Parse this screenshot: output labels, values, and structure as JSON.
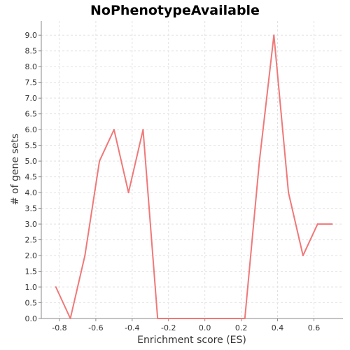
{
  "chart_data": {
    "type": "line",
    "title": "NoPhenotypeAvailable",
    "xlabel": "Enrichment score (ES)",
    "ylabel": "# of gene sets",
    "xlim": [
      -0.9,
      0.76
    ],
    "ylim": [
      0,
      9.45
    ],
    "xticks": [
      "-0.8",
      "-0.6",
      "-0.4",
      "-0.2",
      "0.0",
      "0.2",
      "0.4",
      "0.6"
    ],
    "xtick_values": [
      -0.8,
      -0.6,
      -0.4,
      -0.2,
      0.0,
      0.2,
      0.4,
      0.6
    ],
    "yticks": [
      "0.0",
      "0.5",
      "1.0",
      "1.5",
      "2.0",
      "2.5",
      "3.0",
      "3.5",
      "4.0",
      "4.5",
      "5.0",
      "5.5",
      "6.0",
      "6.5",
      "7.0",
      "7.5",
      "8.0",
      "8.5",
      "9.0"
    ],
    "ytick_values": [
      0,
      0.5,
      1,
      1.5,
      2,
      2.5,
      3,
      3.5,
      4,
      4.5,
      5,
      5.5,
      6,
      6.5,
      7,
      7.5,
      8,
      8.5,
      9
    ],
    "grid": true,
    "series": [
      {
        "color": "#f07878",
        "x": [
          -0.82,
          -0.74,
          -0.66,
          -0.58,
          -0.5,
          -0.42,
          -0.34,
          -0.26,
          -0.18,
          -0.1,
          -0.02,
          0.06,
          0.14,
          0.22,
          0.3,
          0.38,
          0.46,
          0.54,
          0.62,
          0.7
        ],
        "y": [
          1,
          0,
          2,
          5,
          6,
          4,
          6,
          0,
          0,
          0,
          0,
          0,
          0,
          0,
          5,
          9,
          4,
          2,
          3,
          3
        ]
      }
    ]
  }
}
